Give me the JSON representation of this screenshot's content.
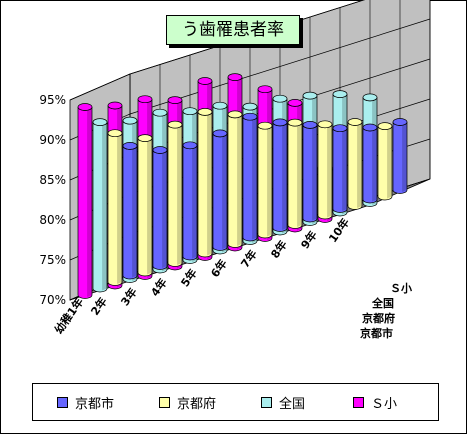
{
  "chart_data": {
    "type": "bar",
    "title": "う歯罹患者率",
    "categories": [
      "1年",
      "2年",
      "3年",
      "4年",
      "5年",
      "6年",
      "7年",
      "8年",
      "9年",
      "10年"
    ],
    "category_prefix": "幼稚",
    "ylim": [
      70,
      95
    ],
    "yticks": [
      "70%",
      "75%",
      "80%",
      "85%",
      "90%",
      "95%"
    ],
    "ytick_values": [
      70,
      75,
      80,
      85,
      90,
      95
    ],
    "grid": true,
    "legend_position": "bottom",
    "series": [
      {
        "name": "京都市",
        "color": "#6666ff",
        "values": [
          86.2,
          84.5,
          83.9,
          84.2,
          85.1,
          83.2,
          81.7,
          80.1,
          79.0,
          78.5
        ]
      },
      {
        "name": "京都府",
        "color": "#ffffaa",
        "values": [
          88.6,
          86.8,
          87.3,
          87.7,
          86.2,
          83.6,
          82.8,
          81.4,
          80.5,
          78.8
        ]
      },
      {
        "name": "全国",
        "color": "#aaeeee",
        "values": [
          90.8,
          89.8,
          89.6,
          88.6,
          88.1,
          86.8,
          86.6,
          85.8,
          84.8,
          83.2
        ]
      },
      {
        "name": "Ｓ小",
        "color": "#ff00ff",
        "values": [
          93.5,
          92.5,
          92.1,
          90.8,
          92.0,
          91.3,
          88.6,
          85.7,
          76.4,
          null
        ]
      }
    ]
  }
}
